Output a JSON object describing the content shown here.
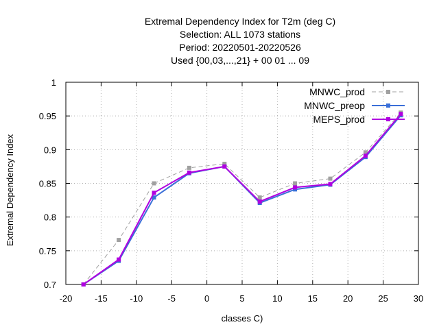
{
  "chart_data": {
    "type": "line",
    "title_lines": [
      "Extremal Dependency Index  for T2m (deg C)",
      "Selection: ALL    1073 stations",
      "Period: 20220501-20220526",
      "Used {00,03,...,21} + 00 01 ... 09"
    ],
    "xlabel": "classes C)",
    "ylabel": "Extremal Dependency Index",
    "xlim": [
      -20,
      30
    ],
    "ylim": [
      0.7,
      1.0
    ],
    "xticks": [
      -20,
      -15,
      -10,
      -5,
      0,
      5,
      10,
      15,
      20,
      25,
      30
    ],
    "yticks": [
      0.7,
      0.75,
      0.8,
      0.85,
      0.9,
      0.95,
      1.0
    ],
    "ytick_labels": [
      "0.7",
      "0.75",
      "0.8",
      "0.85",
      "0.9",
      "0.95",
      "1"
    ],
    "grid": true,
    "legend_position": "top-right",
    "x": [
      -17.5,
      -12.5,
      -7.5,
      -2.5,
      2.5,
      7.5,
      12.5,
      17.5,
      22.5,
      27.5
    ],
    "series": [
      {
        "name": "MNWC_prod",
        "color": "#a0a0a0",
        "dash": true,
        "values": [
          0.7,
          0.766,
          0.85,
          0.873,
          0.879,
          0.829,
          0.85,
          0.857,
          0.896,
          0.955
        ]
      },
      {
        "name": "MNWC_preop",
        "color": "#3a6fd8",
        "dash": false,
        "values": [
          0.7,
          0.735,
          0.829,
          0.865,
          0.875,
          0.821,
          0.841,
          0.848,
          0.889,
          0.951
        ]
      },
      {
        "name": "MEPS_prod",
        "color": "#b000e0",
        "dash": false,
        "values": [
          0.7,
          0.737,
          0.836,
          0.866,
          0.875,
          0.823,
          0.844,
          0.849,
          0.891,
          0.953
        ]
      }
    ]
  }
}
